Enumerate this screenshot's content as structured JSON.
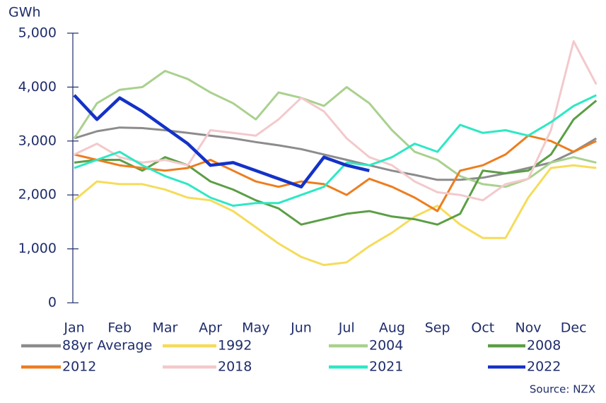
{
  "chart_data": {
    "type": "line",
    "y_label": "GWh",
    "source": "Source: NZX",
    "categories": [
      "Jan",
      null,
      "Feb",
      null,
      "Mar",
      null,
      "Apr",
      null,
      "May",
      null,
      "Jun",
      null,
      "Jul",
      null,
      "Aug",
      null,
      "Sep",
      null,
      "Oct",
      null,
      "Nov",
      null,
      "Dec",
      null
    ],
    "ylim": [
      0,
      5000
    ],
    "yticks": [
      0,
      {
        "value": 1000,
        "label": "1,000"
      },
      {
        "value": 2000,
        "label": "2,000"
      },
      {
        "value": 3000,
        "label": "3,000"
      },
      {
        "value": 4000,
        "label": "4,000"
      },
      {
        "value": 5000,
        "label": "5,000"
      }
    ],
    "grid": false,
    "series": [
      {
        "name": "88yr Average",
        "color": "#8c8c8c",
        "values": [
          3050,
          3180,
          3250,
          3240,
          3200,
          3150,
          3100,
          3050,
          2980,
          2920,
          2850,
          2750,
          2650,
          2550,
          2450,
          2370,
          2280,
          2280,
          2320,
          2400,
          2500,
          2600,
          2800,
          3050
        ]
      },
      {
        "name": "1992",
        "color": "#f5dc5a",
        "values": [
          1900,
          2250,
          2200,
          2200,
          2100,
          1950,
          1900,
          1700,
          1400,
          1100,
          850,
          700,
          750,
          1050,
          1300,
          1600,
          1800,
          1450,
          1200,
          1200,
          1950,
          2500,
          2550,
          2500
        ]
      },
      {
        "name": "2004",
        "color": "#a9d18e",
        "values": [
          3050,
          3700,
          3950,
          4000,
          4300,
          4150,
          3900,
          3700,
          3400,
          3900,
          3800,
          3650,
          4000,
          3700,
          3200,
          2800,
          2650,
          2350,
          2200,
          2150,
          2300,
          2600,
          2700,
          2600
        ]
      },
      {
        "name": "2008",
        "color": "#5b9e45",
        "values": [
          2600,
          2650,
          2650,
          2450,
          2700,
          2550,
          2250,
          2100,
          1900,
          1750,
          1450,
          1550,
          1650,
          1700,
          1600,
          1550,
          1450,
          1650,
          2450,
          2400,
          2450,
          2750,
          3400,
          3750
        ]
      },
      {
        "name": "2012",
        "color": "#ed7d1f",
        "values": [
          2750,
          2650,
          2550,
          2500,
          2450,
          2500,
          2650,
          2450,
          2250,
          2150,
          2250,
          2200,
          2000,
          2300,
          2150,
          1950,
          1700,
          2450,
          2550,
          2750,
          3100,
          3000,
          2800,
          3000
        ]
      },
      {
        "name": "2018",
        "color": "#f3c9cc",
        "values": [
          2750,
          2950,
          2700,
          2600,
          2650,
          2550,
          3200,
          3150,
          3100,
          3400,
          3800,
          3550,
          3050,
          2700,
          2550,
          2250,
          2050,
          2000,
          1900,
          2200,
          2300,
          3200,
          4850,
          4050
        ]
      },
      {
        "name": "2021",
        "color": "#2ee8c4",
        "values": [
          2500,
          2650,
          2800,
          2550,
          2350,
          2200,
          1950,
          1800,
          1850,
          1850,
          2000,
          2150,
          2600,
          2550,
          2700,
          2950,
          2800,
          3300,
          3150,
          3200,
          3100,
          3350,
          3650,
          3850
        ]
      },
      {
        "name": "2022",
        "color": "#1432c8",
        "values": [
          3850,
          3400,
          3800,
          3550,
          3250,
          2950,
          2550,
          2600,
          2450,
          2300,
          2150,
          2700,
          2550,
          2450,
          null,
          null,
          null,
          null,
          null,
          null,
          null,
          null,
          null,
          null
        ]
      }
    ]
  }
}
